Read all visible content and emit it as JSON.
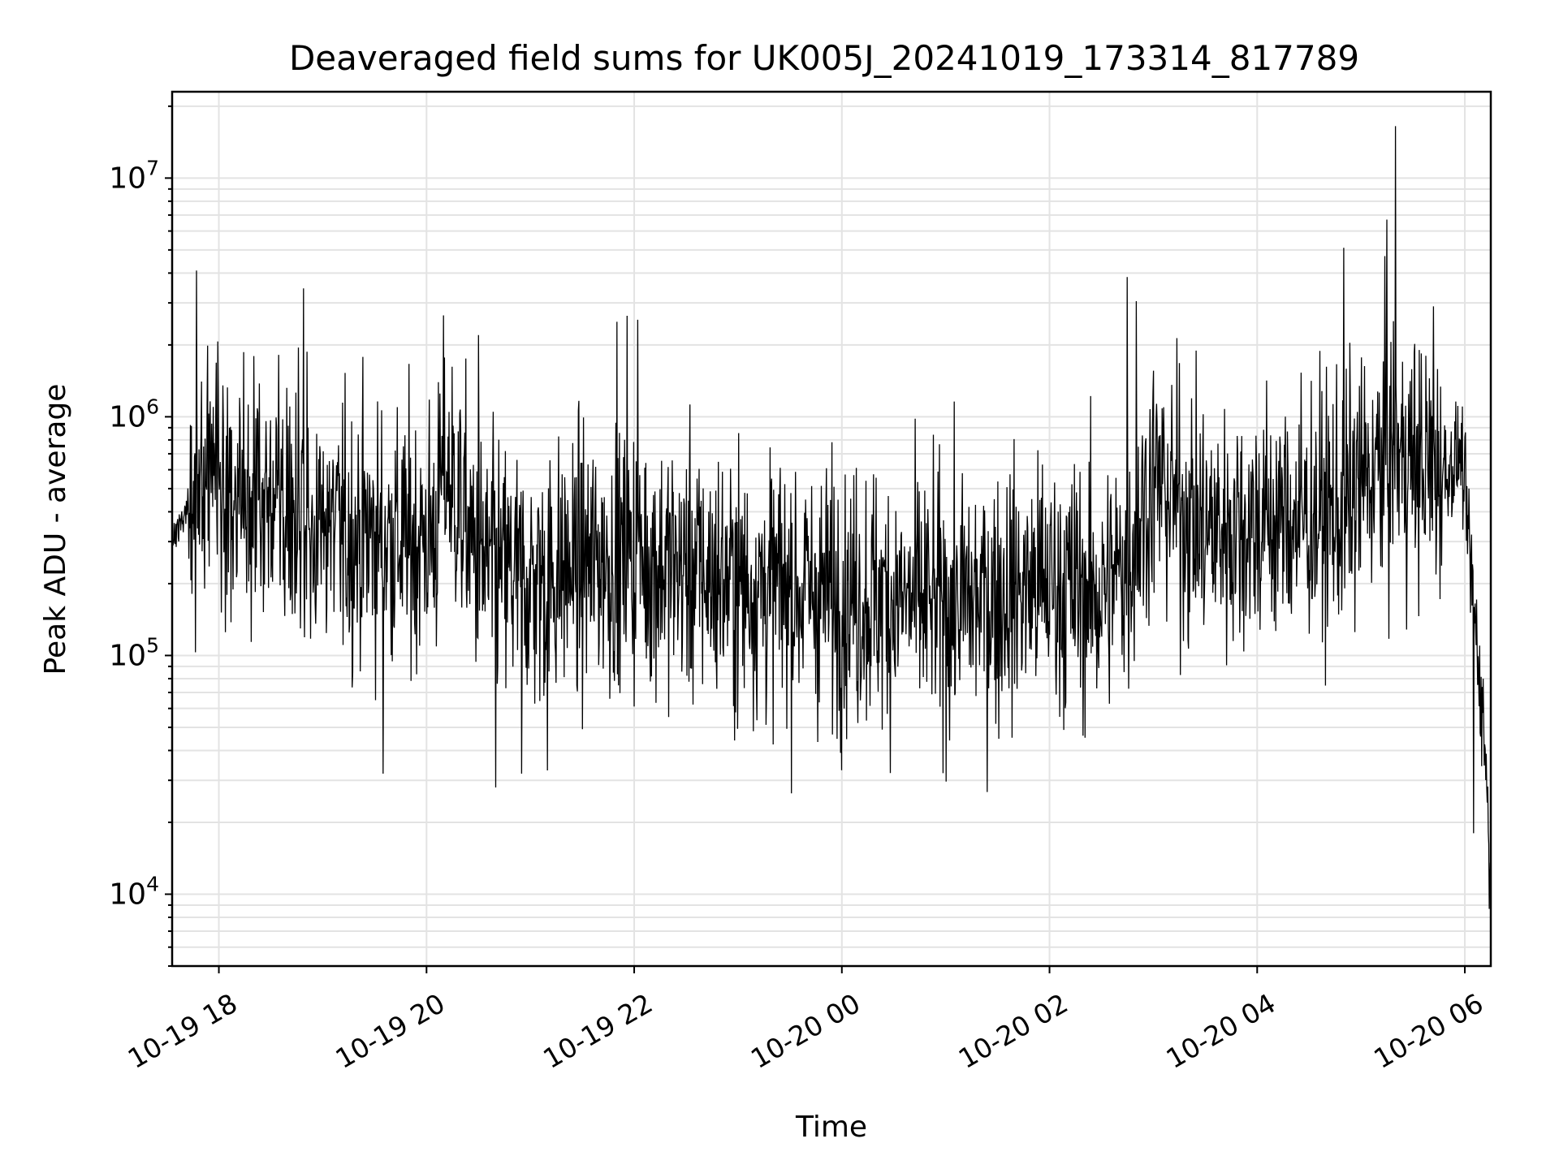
{
  "chart_data": {
    "type": "line",
    "title": "Deaveraged field sums for UK005J_20241019_173314_817789",
    "xlabel": "Time",
    "ylabel": "Peak ADU - average",
    "yscale": "log",
    "ylim": [
      5000,
      23000000
    ],
    "xlim": [
      "2024-10-19T17:33",
      "2024-10-20T06:15"
    ],
    "xticks": [
      {
        "t": "2024-10-19T18:00",
        "label": "10-19 18"
      },
      {
        "t": "2024-10-19T20:00",
        "label": "10-19 20"
      },
      {
        "t": "2024-10-19T22:00",
        "label": "10-19 22"
      },
      {
        "t": "2024-10-20T00:00",
        "label": "10-20 00"
      },
      {
        "t": "2024-10-20T02:00",
        "label": "10-20 02"
      },
      {
        "t": "2024-10-20T04:00",
        "label": "10-20 04"
      },
      {
        "t": "2024-10-20T06:00",
        "label": "10-20 06"
      }
    ],
    "yticks": [
      {
        "v": 10000,
        "base": "10",
        "exp": "4"
      },
      {
        "v": 100000,
        "base": "10",
        "exp": "5"
      },
      {
        "v": 1000000,
        "base": "10",
        "exp": "6"
      },
      {
        "v": 10000000,
        "base": "10",
        "exp": "7"
      }
    ],
    "grid": true,
    "series": [
      {
        "color": "#000000",
        "x": [
          "2024-10-19T17:33",
          "2024-10-19T17:42",
          "2024-10-19T17:45",
          "2024-10-19T17:48",
          "2024-10-19T17:52",
          "2024-10-19T18:10",
          "2024-10-19T18:30",
          "2024-10-19T18:50",
          "2024-10-19T19:10",
          "2024-10-19T19:30",
          "2024-10-19T19:50",
          "2024-10-19T20:05",
          "2024-10-19T20:10",
          "2024-10-19T20:30",
          "2024-10-19T20:45",
          "2024-10-19T21:00",
          "2024-10-19T21:20",
          "2024-10-19T21:40",
          "2024-10-19T22:00",
          "2024-10-19T22:30",
          "2024-10-19T23:00",
          "2024-10-19T23:30",
          "2024-10-20T00:00",
          "2024-10-20T00:30",
          "2024-10-20T01:00",
          "2024-10-20T01:30",
          "2024-10-20T02:00",
          "2024-10-20T02:30",
          "2024-10-20T02:45",
          "2024-10-20T03:00",
          "2024-10-20T03:30",
          "2024-10-20T04:00",
          "2024-10-20T04:30",
          "2024-10-20T04:50",
          "2024-10-20T05:00",
          "2024-10-20T05:20",
          "2024-10-20T05:40",
          "2024-10-20T05:50",
          "2024-10-20T05:58",
          "2024-10-20T06:05",
          "2024-10-20T06:12",
          "2024-10-20T06:15"
        ],
        "y": [
          300000,
          420000,
          480000,
          650000,
          650000,
          500000,
          420000,
          380000,
          320000,
          320000,
          300000,
          320000,
          650000,
          250000,
          220000,
          200000,
          230000,
          250000,
          250000,
          230000,
          200000,
          190000,
          180000,
          170000,
          160000,
          180000,
          200000,
          180000,
          250000,
          550000,
          330000,
          360000,
          380000,
          400000,
          520000,
          700000,
          600000,
          600000,
          700000,
          170000,
          40000,
          10000
        ],
        "spikes": [
          {
            "t": "2024-10-19T17:47",
            "v": 4100000
          },
          {
            "t": "2024-10-19T18:49",
            "v": 3450000
          },
          {
            "t": "2024-10-19T18:46",
            "v": 1950000
          },
          {
            "t": "2024-10-19T20:30",
            "v": 2200000
          },
          {
            "t": "2024-10-19T21:50",
            "v": 2500000
          },
          {
            "t": "2024-10-19T21:56",
            "v": 2650000
          },
          {
            "t": "2024-10-19T22:02",
            "v": 2550000
          },
          {
            "t": "2024-10-20T02:45",
            "v": 3850000
          },
          {
            "t": "2024-10-20T02:50",
            "v": 3050000
          },
          {
            "t": "2024-10-20T04:50",
            "v": 5100000
          },
          {
            "t": "2024-10-20T05:15",
            "v": 6700000
          },
          {
            "t": "2024-10-20T05:20",
            "v": 16500000
          },
          {
            "t": "2024-10-20T05:42",
            "v": 2900000
          }
        ],
        "dips": [
          {
            "t": "2024-10-19T19:35",
            "v": 32000
          },
          {
            "t": "2024-10-19T20:40",
            "v": 28000
          },
          {
            "t": "2024-10-19T20:55",
            "v": 32000
          },
          {
            "t": "2024-10-19T21:10",
            "v": 33000
          },
          {
            "t": "2024-10-20T06:05",
            "v": 18000
          },
          {
            "t": "2024-10-20T06:15",
            "v": 10000
          }
        ]
      }
    ]
  }
}
